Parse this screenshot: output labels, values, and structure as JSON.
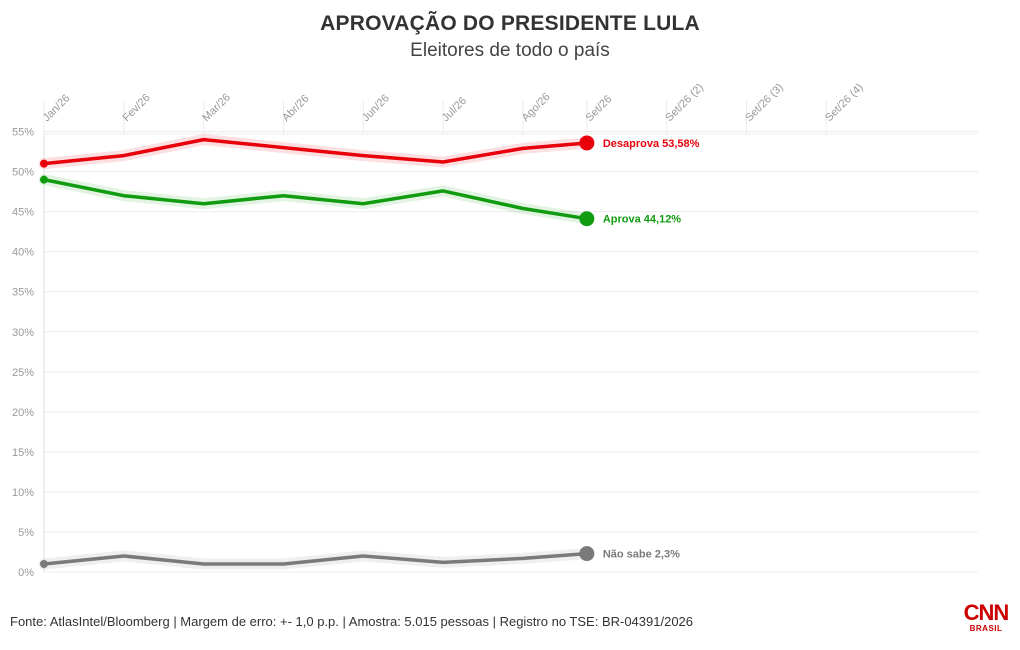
{
  "header": {
    "title": "APROVAÇÃO DO PRESIDENTE LULA",
    "subtitle": "Eleitores de todo o país"
  },
  "footer": {
    "source": "Fonte: AtlasIntel/Bloomberg | Margem de erro: +- 1,0 p.p. | Amostra: 5.015 pessoas | Registro no TSE: BR-04391/2026",
    "logo_main": "CNN",
    "logo_sub": "BRASIL"
  },
  "chart_data": {
    "type": "line",
    "title": "APROVAÇÃO DO PRESIDENTE LULA",
    "subtitle": "Eleitores de todo o país",
    "categories": [
      "Jan/26",
      "Fev/26",
      "Mar/26",
      "Abr/26",
      "Jun/26",
      "Jul/26",
      "Ago/26",
      "Set/26",
      "Set/26 (2)",
      "Set/26 (3)",
      "Set/26 (4)"
    ],
    "x_positions": [
      0,
      1,
      2,
      3,
      4,
      5,
      6,
      6.8,
      7.8,
      8.8,
      9.8
    ],
    "xlim": [
      0,
      11.7
    ],
    "ylim": [
      0,
      55
    ],
    "yticks": [
      0,
      5,
      10,
      15,
      20,
      25,
      30,
      35,
      40,
      45,
      50,
      55
    ],
    "ytick_labels": [
      "0%",
      "5%",
      "10%",
      "15%",
      "20%",
      "25%",
      "30%",
      "35%",
      "40%",
      "45%",
      "50%",
      "55%"
    ],
    "grid": true,
    "series": [
      {
        "key": "desaprova",
        "name": "Desaprova",
        "end_label": "Desaprova 53,58%",
        "color": "#e8000b",
        "points": [
          [
            0,
            51.0
          ],
          [
            1,
            52.0
          ],
          [
            2,
            54.0
          ],
          [
            3,
            53.0
          ],
          [
            4,
            52.0
          ],
          [
            5,
            51.2
          ],
          [
            6,
            52.9
          ],
          [
            6.8,
            53.58
          ]
        ]
      },
      {
        "key": "aprova",
        "name": "Aprova",
        "end_label": "Aprova 44,12%",
        "color": "#109b10",
        "points": [
          [
            0,
            49.0
          ],
          [
            1,
            47.0
          ],
          [
            2,
            46.0
          ],
          [
            3,
            47.0
          ],
          [
            4,
            46.0
          ],
          [
            5,
            47.6
          ],
          [
            6,
            45.4
          ],
          [
            6.8,
            44.12
          ]
        ]
      },
      {
        "key": "nao_sabe",
        "name": "Não sabe",
        "end_label": "Não sabe 2,3%",
        "color": "#7a7a7a",
        "points": [
          [
            0,
            1.0
          ],
          [
            1,
            2.0
          ],
          [
            2,
            1.0
          ],
          [
            3,
            1.0
          ],
          [
            4,
            2.0
          ],
          [
            5,
            1.2
          ],
          [
            6,
            1.7
          ],
          [
            6.8,
            2.3
          ]
        ]
      }
    ]
  }
}
